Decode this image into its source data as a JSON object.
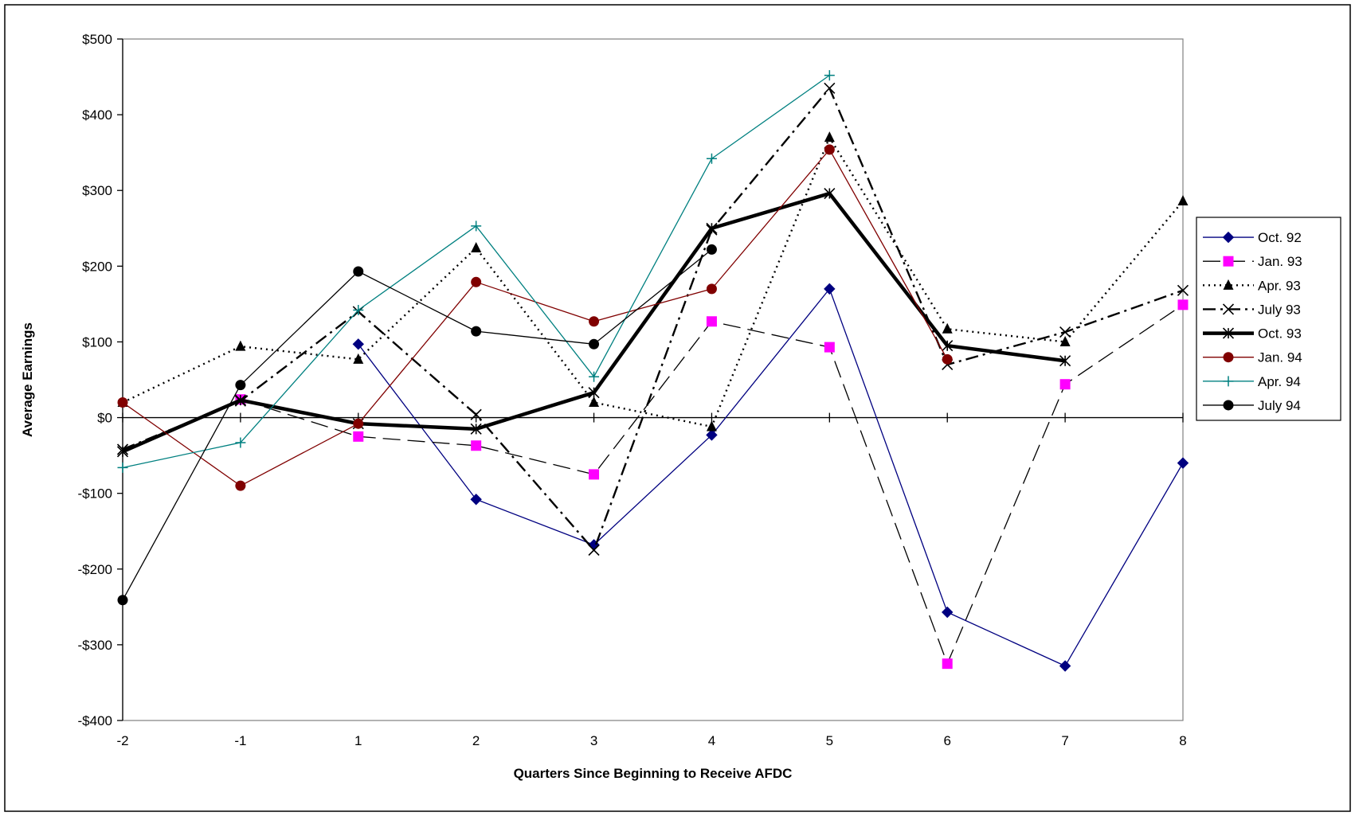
{
  "chart_data": {
    "type": "line",
    "title": "",
    "xlabel": "Quarters Since Beginning to Receive AFDC",
    "ylabel": "Average Earnings",
    "categories": [
      "-2",
      "-1",
      "1",
      "2",
      "3",
      "4",
      "5",
      "6",
      "7",
      "8"
    ],
    "y_ticks": [
      500,
      400,
      300,
      200,
      100,
      0,
      -100,
      -200,
      -300,
      -400
    ],
    "y_tick_labels": [
      "$500",
      "$400",
      "$300",
      "$200",
      "$100",
      "$0",
      "-$100",
      "-$200",
      "-$300",
      "-$400"
    ],
    "ylim": [
      -400,
      500
    ],
    "legend_position": "right",
    "grid": false,
    "series": [
      {
        "name": "Oct. 92",
        "color": "#000080",
        "marker": "diamond",
        "dash": "none",
        "width": 1.3,
        "values": [
          null,
          null,
          97,
          -108,
          -168,
          -23,
          170,
          -257,
          -328,
          -60
        ]
      },
      {
        "name": "Jan. 93",
        "color": "#000000",
        "marker_color": "#FF00FF",
        "marker": "square",
        "dash": "long",
        "width": 1.3,
        "values": [
          null,
          24,
          -25,
          -37,
          -75,
          127,
          93,
          -325,
          44,
          149
        ]
      },
      {
        "name": "Apr. 93",
        "color": "#000000",
        "marker": "triangle",
        "dash": "dot",
        "width": 2.4,
        "values": [
          20,
          94,
          77,
          224,
          20,
          -12,
          370,
          117,
          100,
          286
        ]
      },
      {
        "name": "July 93",
        "color": "#000000",
        "marker": "x",
        "dash": "dashdot",
        "width": 2.4,
        "values": [
          -42,
          22,
          140,
          4,
          -175,
          248,
          435,
          70,
          113,
          168
        ]
      },
      {
        "name": "Oct. 93",
        "color": "#000000",
        "marker": "star",
        "dash": "none",
        "width": 4.5,
        "values": [
          -45,
          23,
          -8,
          -15,
          33,
          250,
          296,
          95,
          75,
          null
        ]
      },
      {
        "name": "Jan. 94",
        "color": "#800000",
        "marker": "circle",
        "dash": "none",
        "width": 1.3,
        "values": [
          20,
          -90,
          -8,
          179,
          127,
          170,
          354,
          77,
          null,
          null
        ]
      },
      {
        "name": "Apr. 94",
        "color": "#008080",
        "marker": "plus",
        "dash": "none",
        "width": 1.3,
        "values": [
          -66,
          -33,
          142,
          253,
          54,
          342,
          452,
          null,
          null,
          null
        ]
      },
      {
        "name": "July 94",
        "color": "#000000",
        "marker": "circle",
        "dash": "none",
        "width": 1.3,
        "values": [
          -241,
          43,
          193,
          114,
          97,
          222,
          null,
          null,
          null,
          null
        ]
      }
    ]
  }
}
